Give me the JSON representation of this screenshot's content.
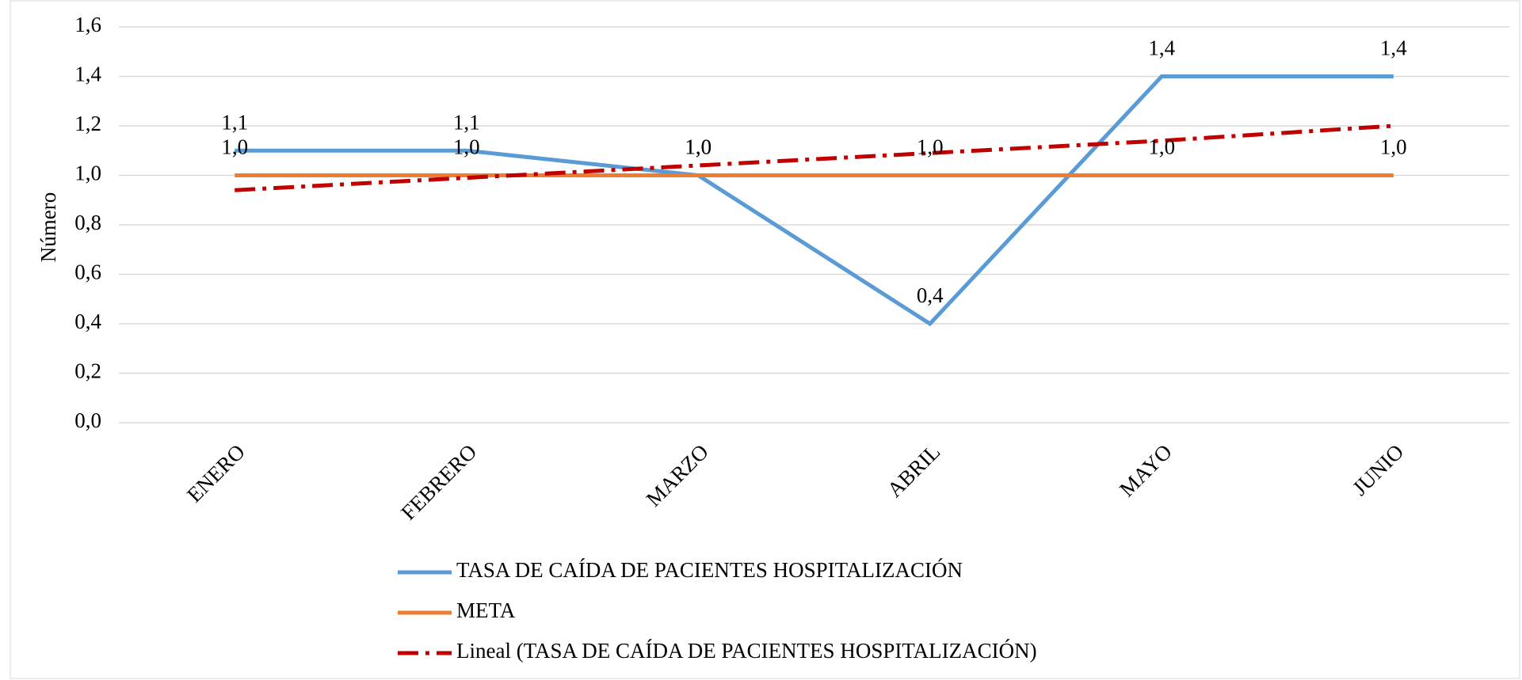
{
  "chart_data": {
    "type": "line",
    "y_label": "Número",
    "categories": [
      "ENERO",
      "FEBRERO",
      "MARZO",
      "ABRIL",
      "MAYO",
      "JUNIO"
    ],
    "series": [
      {
        "name": "TASA DE CAÍDA DE PACIENTES HOSPITALIZACIÓN",
        "color": "#5b9bd5",
        "style": "solid",
        "values": [
          1.1,
          1.1,
          1.0,
          0.4,
          1.4,
          1.4
        ],
        "value_labels": [
          "1,1",
          "1,1",
          "1,0",
          "0,4",
          "1,4",
          "1,4"
        ]
      },
      {
        "name": "META",
        "color": "#ed7d31",
        "style": "solid",
        "values": [
          1.0,
          1.0,
          1.0,
          1.0,
          1.0,
          1.0
        ],
        "value_labels": [
          "1,0",
          "1,0",
          "1,0",
          "1,0",
          "1,0",
          "1,0"
        ]
      },
      {
        "name": "Lineal (TASA DE CAÍDA DE PACIENTES HOSPITALIZACIÓN)",
        "color": "#c00000",
        "style": "dashdot",
        "values": [
          0.94,
          0.99,
          1.04,
          1.09,
          1.14,
          1.2
        ]
      }
    ],
    "ylim": [
      0,
      1.6
    ],
    "yticks": [
      {
        "value": 0,
        "label": "0,0"
      },
      {
        "value": 0.2,
        "label": "0,2"
      },
      {
        "value": 0.4,
        "label": "0,4"
      },
      {
        "value": 0.6,
        "label": "0,6"
      },
      {
        "value": 0.8,
        "label": "0,8"
      },
      {
        "value": 1.0,
        "label": "1,0"
      },
      {
        "value": 1.2,
        "label": "1,2"
      },
      {
        "value": 1.4,
        "label": "1,4"
      },
      {
        "value": 1.6,
        "label": "1,6"
      }
    ],
    "grid": true,
    "legend": "bottom"
  }
}
